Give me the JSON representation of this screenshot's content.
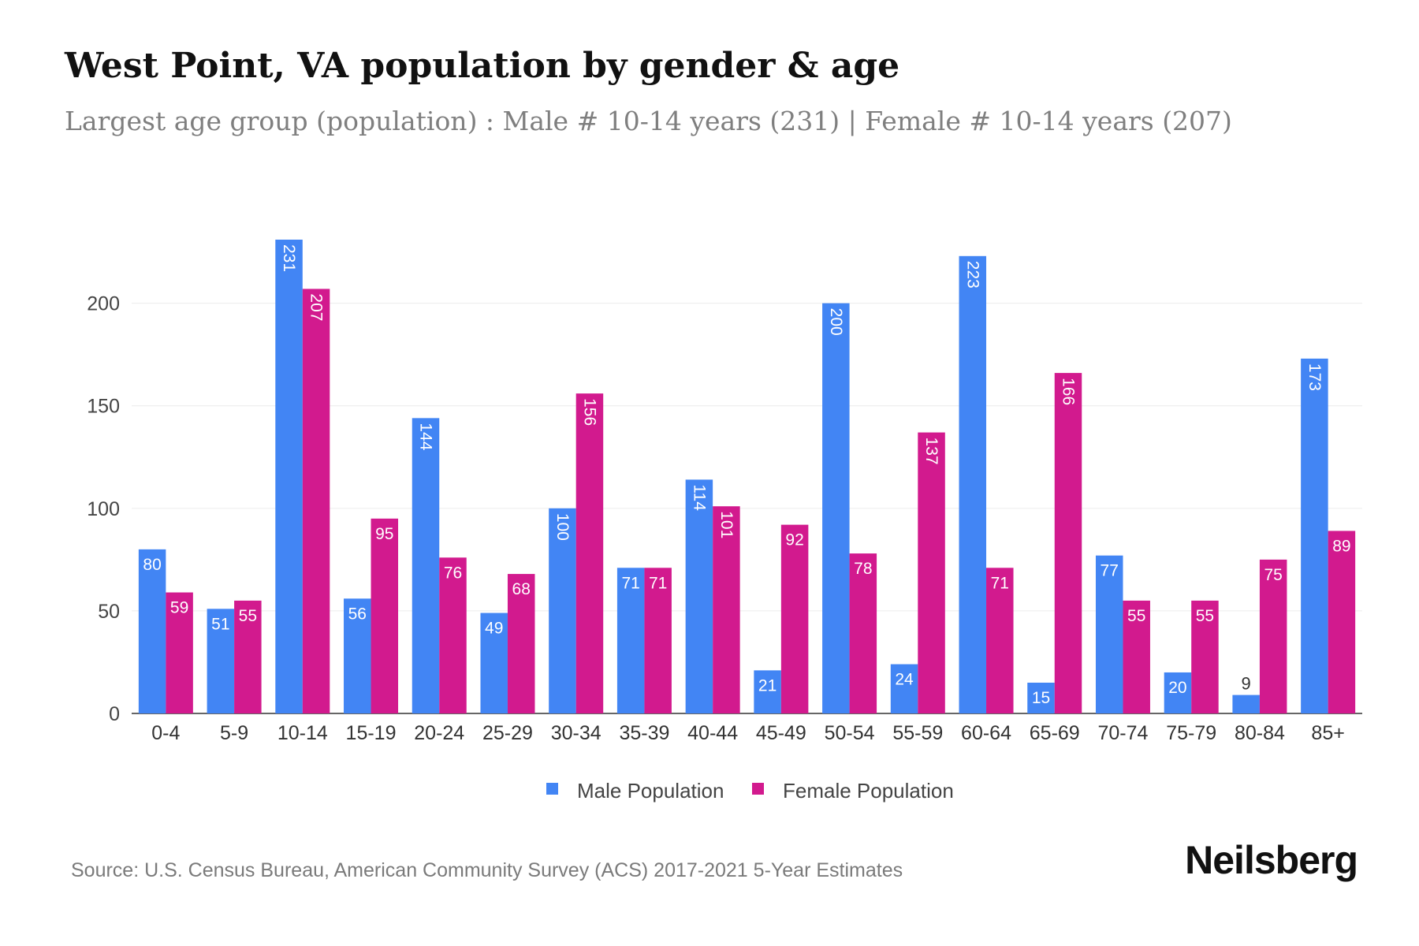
{
  "header": {
    "title": "West Point, VA population by gender & age",
    "subtitle": "Largest age group (population) : Male # 10-14 years (231) | Female # 10-14 years (207)"
  },
  "footer": {
    "source": "Source: U.S. Census Bureau, American Community Survey (ACS) 2017-2021 5-Year Estimates",
    "brand": "Neilsberg"
  },
  "chart_data": {
    "type": "bar",
    "title": "West Point, VA population by gender & age",
    "subtitle": "Largest age group (population) : Male # 10-14 years (231) | Female # 10-14 years (207)",
    "xlabel": "",
    "ylabel": "",
    "categories": [
      "0-4",
      "5-9",
      "10-14",
      "15-19",
      "20-24",
      "25-29",
      "30-34",
      "35-39",
      "40-44",
      "45-49",
      "50-54",
      "55-59",
      "60-64",
      "65-69",
      "70-74",
      "75-79",
      "80-84",
      "85+"
    ],
    "series": [
      {
        "name": "Male Population",
        "color": "#4285f4",
        "values": [
          80,
          51,
          231,
          56,
          144,
          49,
          100,
          71,
          114,
          21,
          200,
          24,
          223,
          15,
          77,
          20,
          9,
          173
        ]
      },
      {
        "name": "Female Population",
        "color": "#d21a8e",
        "values": [
          59,
          55,
          207,
          95,
          76,
          68,
          156,
          71,
          101,
          92,
          78,
          137,
          71,
          166,
          55,
          55,
          75,
          89
        ]
      }
    ],
    "ylim": [
      0,
      231
    ],
    "yticks": [
      0,
      50,
      100,
      150,
      200
    ],
    "grid": true,
    "legend_position": "bottom-center"
  }
}
